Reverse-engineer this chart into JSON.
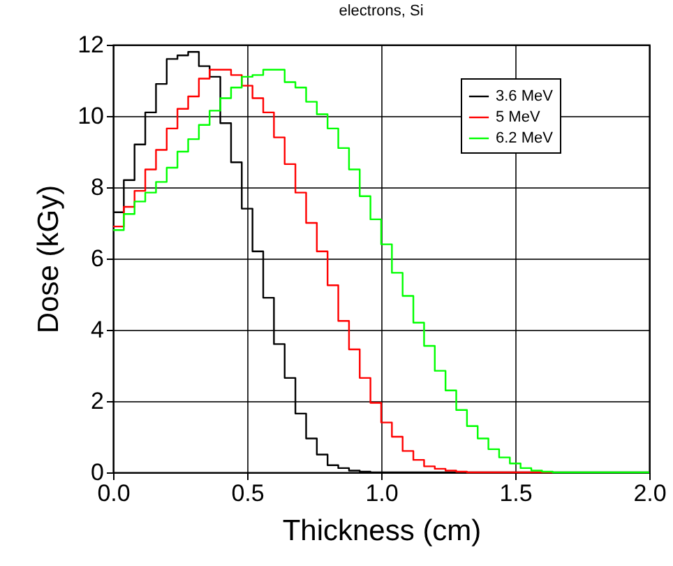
{
  "chart_data": {
    "type": "step",
    "title": "electrons, Si",
    "xlabel": "Thickness (cm)",
    "ylabel": "Dose (kGy)",
    "x": [
      0,
      0.04,
      0.08,
      0.12,
      0.16,
      0.2,
      0.24,
      0.28,
      0.32,
      0.36,
      0.4,
      0.44,
      0.48,
      0.52,
      0.56,
      0.6,
      0.64,
      0.68,
      0.72,
      0.76,
      0.8,
      0.84,
      0.88,
      0.92,
      0.96,
      1.0,
      1.04,
      1.08,
      1.12,
      1.16,
      1.2,
      1.24,
      1.28,
      1.32,
      1.36,
      1.4,
      1.44,
      1.48,
      1.52,
      1.56,
      1.6,
      1.64,
      1.68,
      1.72,
      1.76,
      1.8,
      1.84,
      1.88,
      1.92,
      1.96,
      2.0
    ],
    "series": [
      {
        "name": "3.6 MeV",
        "color": "#000000",
        "values": [
          7.3,
          8.2,
          9.2,
          10.1,
          10.9,
          11.6,
          11.7,
          11.8,
          11.4,
          11.1,
          9.8,
          8.7,
          7.4,
          6.2,
          4.9,
          3.6,
          2.65,
          1.65,
          0.95,
          0.5,
          0.2,
          0.12,
          0.05,
          0.02,
          0,
          0,
          0,
          0,
          0,
          0,
          0,
          0,
          0,
          0,
          0,
          0,
          0,
          0,
          0,
          0,
          0,
          0,
          0,
          0,
          0,
          0,
          0,
          0,
          0,
          0,
          0
        ]
      },
      {
        "name": "5 MeV",
        "color": "#ff0000",
        "values": [
          6.9,
          7.45,
          7.9,
          8.5,
          9.05,
          9.65,
          10.2,
          10.55,
          11.05,
          11.3,
          11.3,
          11.15,
          10.85,
          10.5,
          10.1,
          9.4,
          8.65,
          7.85,
          7.0,
          6.2,
          5.25,
          4.25,
          3.45,
          2.65,
          1.95,
          1.4,
          1.0,
          0.6,
          0.35,
          0.17,
          0.1,
          0.05,
          0.02,
          0,
          0,
          0,
          0,
          0,
          0,
          0,
          0,
          0,
          null,
          null,
          null,
          null,
          null,
          null,
          null,
          null,
          null
        ]
      },
      {
        "name": "6.2 MeV",
        "color": "#00ff00",
        "values": [
          6.8,
          7.25,
          7.6,
          7.85,
          8.15,
          8.55,
          9.0,
          9.35,
          9.75,
          10.15,
          10.5,
          10.8,
          11.1,
          11.15,
          11.3,
          11.3,
          10.95,
          10.8,
          10.4,
          10.05,
          9.65,
          9.1,
          8.5,
          7.75,
          7.1,
          6.4,
          5.6,
          4.95,
          4.2,
          3.55,
          2.85,
          2.3,
          1.75,
          1.3,
          0.95,
          0.65,
          0.42,
          0.25,
          0.12,
          0.05,
          0.02,
          0,
          0,
          0,
          0,
          0,
          0,
          0,
          0,
          0,
          0
        ]
      }
    ],
    "xlim": [
      0,
      2.0
    ],
    "ylim": [
      0,
      12
    ],
    "xticks": [
      {
        "value": 0,
        "label": "0.0"
      },
      {
        "value": 0.5,
        "label": "0.5"
      },
      {
        "value": 1,
        "label": "1.0"
      },
      {
        "value": 1.5,
        "label": "1.5"
      },
      {
        "value": 2,
        "label": "2.0"
      }
    ],
    "yticks": [
      0,
      2,
      4,
      6,
      8,
      10,
      12
    ],
    "grid": true,
    "legend": "top right",
    "marker": "none",
    "line_style": "solid"
  }
}
